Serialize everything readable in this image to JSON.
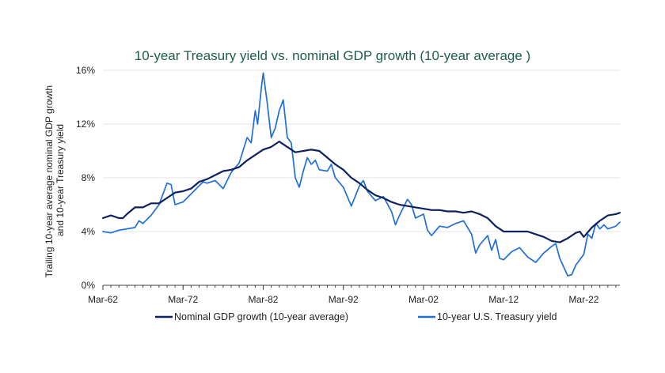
{
  "chart_data": {
    "type": "line",
    "title": "10-year Treasury yield vs. nominal GDP growth (10-year average )",
    "ylabel_lines": [
      "Trailing 10-year average nominal GDP growth",
      "and 10-year Treasury yield"
    ],
    "xlabel": "",
    "x_ticks": [
      "Mar-62",
      "Mar-72",
      "Mar-82",
      "Mar-92",
      "Mar-02",
      "Mar-12",
      "Mar-22"
    ],
    "y_ticks": [
      "0%",
      "4%",
      "8%",
      "12%",
      "16%"
    ],
    "xlim": [
      1962.0,
      2026.5
    ],
    "ylim": [
      0,
      16
    ],
    "grid": "horizontal",
    "legend_position": "bottom",
    "colors": {
      "title": "#1f5c4f",
      "gdp": "#0e2060",
      "yield": "#1f6fd4",
      "grid": "#e3e3e3",
      "axis": "#444444"
    },
    "series": [
      {
        "name": "Nominal GDP growth (10-year average)",
        "color": "#0e2060",
        "points": [
          [
            1962.0,
            5.0
          ],
          [
            1963.0,
            5.2
          ],
          [
            1964.0,
            5.0
          ],
          [
            1964.5,
            5.0
          ],
          [
            1965.0,
            5.3
          ],
          [
            1966.0,
            5.8
          ],
          [
            1967.0,
            5.8
          ],
          [
            1968.0,
            6.1
          ],
          [
            1969.0,
            6.1
          ],
          [
            1970.0,
            6.5
          ],
          [
            1971.0,
            6.9
          ],
          [
            1972.0,
            7.0
          ],
          [
            1973.0,
            7.2
          ],
          [
            1974.0,
            7.7
          ],
          [
            1975.0,
            7.9
          ],
          [
            1976.0,
            8.2
          ],
          [
            1977.0,
            8.5
          ],
          [
            1978.0,
            8.6
          ],
          [
            1979.0,
            8.8
          ],
          [
            1980.0,
            9.3
          ],
          [
            1981.0,
            9.7
          ],
          [
            1982.0,
            10.1
          ],
          [
            1983.0,
            10.3
          ],
          [
            1984.0,
            10.7
          ],
          [
            1985.0,
            10.3
          ],
          [
            1986.0,
            9.9
          ],
          [
            1987.0,
            10.0
          ],
          [
            1988.0,
            10.1
          ],
          [
            1989.0,
            10.0
          ],
          [
            1990.0,
            9.5
          ],
          [
            1991.0,
            9.0
          ],
          [
            1992.0,
            8.6
          ],
          [
            1993.0,
            8.0
          ],
          [
            1994.0,
            7.6
          ],
          [
            1995.0,
            7.1
          ],
          [
            1996.0,
            6.7
          ],
          [
            1997.0,
            6.5
          ],
          [
            1998.0,
            6.2
          ],
          [
            1999.0,
            6.0
          ],
          [
            2000.0,
            5.9
          ],
          [
            2001.0,
            5.8
          ],
          [
            2002.0,
            5.7
          ],
          [
            2003.0,
            5.6
          ],
          [
            2004.0,
            5.6
          ],
          [
            2005.0,
            5.5
          ],
          [
            2006.0,
            5.5
          ],
          [
            2007.0,
            5.4
          ],
          [
            2008.0,
            5.5
          ],
          [
            2009.0,
            5.3
          ],
          [
            2010.0,
            5.0
          ],
          [
            2011.0,
            4.4
          ],
          [
            2012.0,
            4.0
          ],
          [
            2013.0,
            4.0
          ],
          [
            2014.0,
            4.0
          ],
          [
            2015.0,
            4.0
          ],
          [
            2016.0,
            3.8
          ],
          [
            2017.0,
            3.6
          ],
          [
            2018.0,
            3.3
          ],
          [
            2019.0,
            3.2
          ],
          [
            2020.0,
            3.5
          ],
          [
            2021.0,
            3.9
          ],
          [
            2021.5,
            4.0
          ],
          [
            2022.0,
            3.6
          ],
          [
            2023.0,
            4.3
          ],
          [
            2024.0,
            4.8
          ],
          [
            2025.0,
            5.2
          ],
          [
            2026.0,
            5.3
          ],
          [
            2026.5,
            5.4
          ]
        ]
      },
      {
        "name": "10-year U.S. Treasury yield",
        "color": "#1f6fd4",
        "points": [
          [
            1962.0,
            4.0
          ],
          [
            1963.0,
            3.9
          ],
          [
            1964.0,
            4.1
          ],
          [
            1965.0,
            4.2
          ],
          [
            1966.0,
            4.3
          ],
          [
            1966.5,
            4.8
          ],
          [
            1967.0,
            4.6
          ],
          [
            1968.0,
            5.2
          ],
          [
            1969.0,
            6.0
          ],
          [
            1970.0,
            7.6
          ],
          [
            1970.5,
            7.5
          ],
          [
            1971.0,
            6.0
          ],
          [
            1972.0,
            6.2
          ],
          [
            1973.0,
            6.8
          ],
          [
            1974.0,
            7.4
          ],
          [
            1974.5,
            7.7
          ],
          [
            1975.0,
            7.6
          ],
          [
            1976.0,
            7.8
          ],
          [
            1977.0,
            7.2
          ],
          [
            1978.0,
            8.4
          ],
          [
            1979.0,
            9.1
          ],
          [
            1980.0,
            11.0
          ],
          [
            1980.5,
            10.6
          ],
          [
            1981.0,
            13.0
          ],
          [
            1981.3,
            12.0
          ],
          [
            1981.8,
            14.9
          ],
          [
            1982.0,
            15.8
          ],
          [
            1982.5,
            13.6
          ],
          [
            1983.0,
            11.0
          ],
          [
            1983.5,
            11.7
          ],
          [
            1984.0,
            13.0
          ],
          [
            1984.5,
            13.8
          ],
          [
            1985.0,
            11.0
          ],
          [
            1985.5,
            10.6
          ],
          [
            1986.0,
            8.0
          ],
          [
            1986.5,
            7.3
          ],
          [
            1987.0,
            8.5
          ],
          [
            1987.5,
            9.5
          ],
          [
            1988.0,
            9.0
          ],
          [
            1988.5,
            9.3
          ],
          [
            1989.0,
            8.6
          ],
          [
            1990.0,
            8.5
          ],
          [
            1990.5,
            9.0
          ],
          [
            1991.0,
            8.0
          ],
          [
            1992.0,
            7.3
          ],
          [
            1993.0,
            5.9
          ],
          [
            1994.0,
            7.4
          ],
          [
            1994.5,
            7.8
          ],
          [
            1995.0,
            7.0
          ],
          [
            1996.0,
            6.3
          ],
          [
            1997.0,
            6.6
          ],
          [
            1998.0,
            5.5
          ],
          [
            1998.5,
            4.5
          ],
          [
            1999.0,
            5.2
          ],
          [
            2000.0,
            6.4
          ],
          [
            2000.5,
            6.0
          ],
          [
            2001.0,
            5.0
          ],
          [
            2002.0,
            5.3
          ],
          [
            2002.5,
            4.1
          ],
          [
            2003.0,
            3.7
          ],
          [
            2004.0,
            4.4
          ],
          [
            2005.0,
            4.3
          ],
          [
            2006.0,
            4.6
          ],
          [
            2007.0,
            4.8
          ],
          [
            2008.0,
            3.8
          ],
          [
            2008.5,
            2.4
          ],
          [
            2009.0,
            3.0
          ],
          [
            2010.0,
            3.7
          ],
          [
            2010.5,
            2.6
          ],
          [
            2011.0,
            3.4
          ],
          [
            2011.5,
            2.0
          ],
          [
            2012.0,
            1.9
          ],
          [
            2013.0,
            2.5
          ],
          [
            2014.0,
            2.8
          ],
          [
            2015.0,
            2.1
          ],
          [
            2016.0,
            1.7
          ],
          [
            2017.0,
            2.4
          ],
          [
            2018.0,
            2.9
          ],
          [
            2018.5,
            3.1
          ],
          [
            2019.0,
            2.0
          ],
          [
            2020.0,
            0.7
          ],
          [
            2020.5,
            0.8
          ],
          [
            2021.0,
            1.5
          ],
          [
            2022.0,
            2.3
          ],
          [
            2022.5,
            3.8
          ],
          [
            2023.0,
            3.5
          ],
          [
            2023.5,
            4.6
          ],
          [
            2024.0,
            4.2
          ],
          [
            2024.5,
            4.5
          ],
          [
            2025.0,
            4.2
          ],
          [
            2025.5,
            4.3
          ],
          [
            2026.0,
            4.4
          ],
          [
            2026.5,
            4.7
          ]
        ]
      }
    ]
  }
}
